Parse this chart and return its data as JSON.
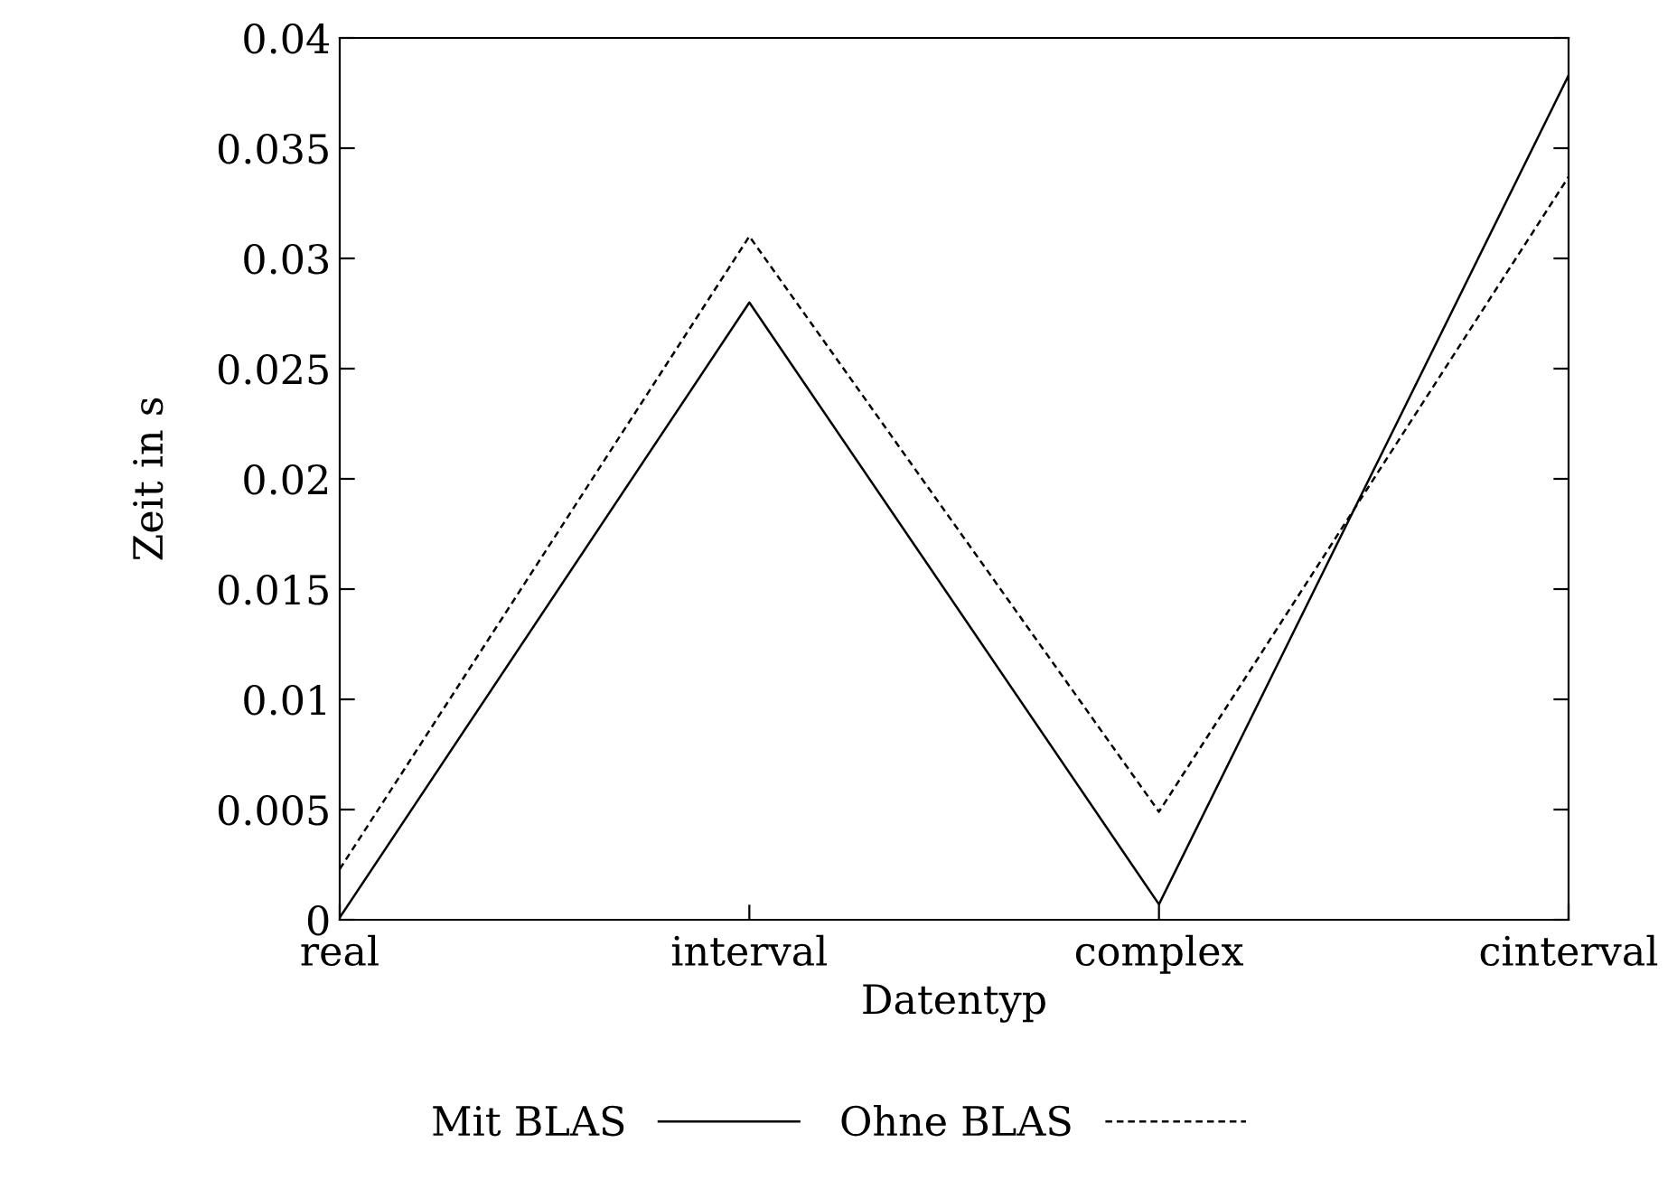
{
  "chart_data": {
    "type": "line",
    "xlabel": "Datentyp",
    "ylabel": "Zeit in s",
    "categories": [
      "real",
      "interval",
      "complex",
      "cinterval"
    ],
    "series": [
      {
        "name": "Mit BLAS",
        "color": "#000000",
        "line_style": "solid",
        "values": [
          0.0001,
          0.028,
          0.0007,
          0.0383
        ]
      },
      {
        "name": "Ohne BLAS",
        "color": "#000000",
        "line_style": "dashed",
        "values": [
          0.0023,
          0.031,
          0.0049,
          0.0337
        ]
      }
    ],
    "ylim": [
      0,
      0.04
    ],
    "yticks": [
      0,
      0.005,
      0.01,
      0.015,
      0.02,
      0.025,
      0.03,
      0.035,
      0.04
    ],
    "grid": false,
    "legend": "bottom",
    "marker": "none"
  }
}
